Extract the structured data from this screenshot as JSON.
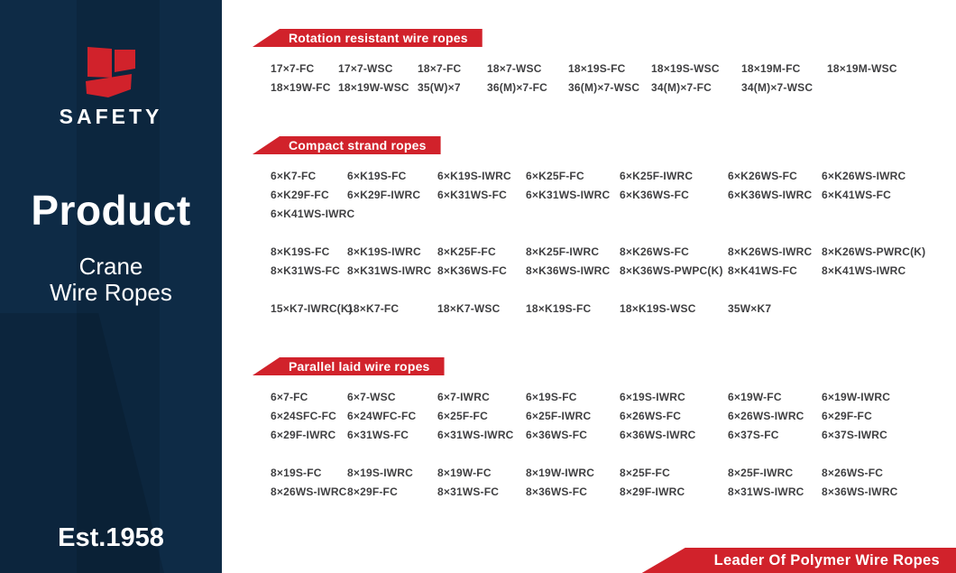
{
  "colors": {
    "navy": "#0e2b46",
    "red": "#d1222b",
    "code_text": "#3f3f41"
  },
  "sidebar": {
    "logo_icon": "safety-s-logo",
    "brand": "SAFETY",
    "title": "Product",
    "subtitle": [
      "Crane",
      "Wire Ropes"
    ],
    "established": "Est.1958"
  },
  "sections": [
    {
      "title": "Rotation resistant wire ropes",
      "cols": 8,
      "groups": [
        [
          [
            "17×7-FC",
            "17×7-WSC",
            "18×7-FC",
            "18×7-WSC",
            "18×19S-FC",
            "18×19S-WSC",
            "18×19M-FC",
            "18×19M-WSC"
          ],
          [
            "18×19W-FC",
            "18×19W-WSC",
            "35(W)×7",
            "36(M)×7-FC",
            "36(M)×7-WSC",
            "34(M)×7-FC",
            "34(M)×7-WSC"
          ]
        ]
      ]
    },
    {
      "title": "Compact strand ropes",
      "cols": 7,
      "groups": [
        [
          [
            "6×K7-FC",
            "6×K19S-FC",
            "6×K19S-IWRC",
            "6×K25F-FC",
            "6×K25F-IWRC",
            "6×K26WS-FC",
            "6×K26WS-IWRC"
          ],
          [
            "6×K29F-FC",
            "6×K29F-IWRC",
            "6×K31WS-FC",
            "6×K31WS-IWRC",
            "6×K36WS-FC",
            "6×K36WS-IWRC",
            "6×K41WS-FC"
          ],
          [
            "6×K41WS-IWRC"
          ]
        ],
        [
          [
            "8×K19S-FC",
            "8×K19S-IWRC",
            "8×K25F-FC",
            "8×K25F-IWRC",
            "8×K26WS-FC",
            "8×K26WS-IWRC",
            "8×K26WS-PWRC(K)"
          ],
          [
            "8×K31WS-FC",
            "8×K31WS-IWRC",
            "8×K36WS-FC",
            "8×K36WS-IWRC",
            "8×K36WS-PWPC(K)",
            "8×K41WS-FC",
            "8×K41WS-IWRC"
          ]
        ],
        [
          [
            "15×K7-IWRC(K)",
            "18×K7-FC",
            "18×K7-WSC",
            "18×K19S-FC",
            "18×K19S-WSC",
            "35W×K7"
          ]
        ]
      ]
    },
    {
      "title": "Parallel laid wire ropes",
      "cols": 7,
      "groups": [
        [
          [
            "6×7-FC",
            "6×7-WSC",
            "6×7-IWRC",
            "6×19S-FC",
            "6×19S-IWRC",
            "6×19W-FC",
            "6×19W-IWRC"
          ],
          [
            "6×24SFC-FC",
            "6×24WFC-FC",
            "6×25F-FC",
            "6×25F-IWRC",
            "6×26WS-FC",
            "6×26WS-IWRC",
            "6×29F-FC"
          ],
          [
            "6×29F-IWRC",
            "6×31WS-FC",
            "6×31WS-IWRC",
            "6×36WS-FC",
            "6×36WS-IWRC",
            "6×37S-FC",
            "6×37S-IWRC"
          ]
        ],
        [
          [
            "8×19S-FC",
            "8×19S-IWRC",
            "8×19W-FC",
            "8×19W-IWRC",
            "8×25F-FC",
            "8×25F-IWRC",
            "8×26WS-FC"
          ],
          [
            "8×26WS-IWRC",
            "8×29F-FC",
            "8×31WS-FC",
            "8×36WS-FC",
            "8×29F-IWRC",
            "8×31WS-IWRC",
            "8×36WS-IWRC"
          ]
        ]
      ]
    }
  ],
  "footer": {
    "banner_label": "Leader Of Polymer Wire Ropes"
  }
}
